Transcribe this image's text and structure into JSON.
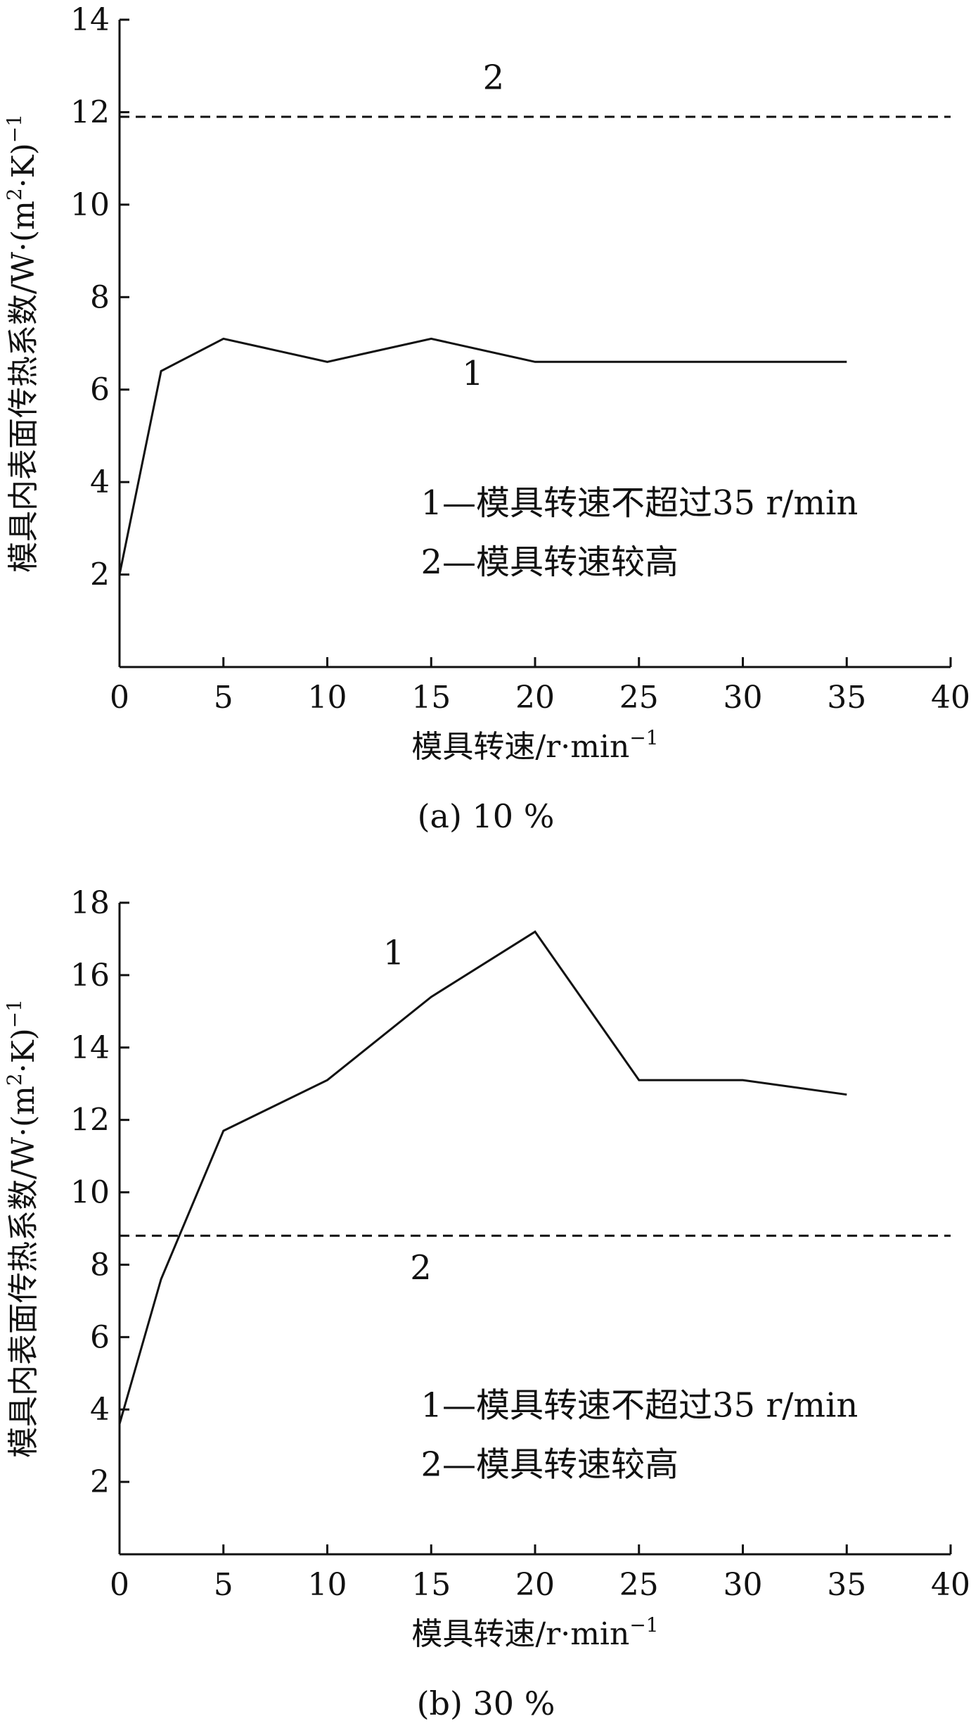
{
  "chart_data": [
    {
      "type": "line",
      "caption": "(a) 10 %",
      "xlabel": "模具转速/r·min",
      "xlabel_exp": "−1",
      "ylabel": "模具内表面传热系数/W·(m",
      "ylabel_sup2": "2",
      "ylabel_tail": "·K)",
      "ylabel_exp": "−1",
      "xlim": [
        0,
        40
      ],
      "ylim": [
        0,
        14
      ],
      "xticks": [
        0,
        5,
        10,
        15,
        20,
        25,
        30,
        35,
        40
      ],
      "yticks": [
        2,
        4,
        6,
        8,
        10,
        12,
        14
      ],
      "series": [
        {
          "name": "1",
          "style": "solid",
          "x": [
            0,
            2,
            5,
            10,
            15,
            20,
            25,
            30,
            35
          ],
          "y": [
            2.0,
            6.4,
            7.1,
            6.6,
            7.1,
            6.6,
            6.6,
            6.6,
            6.6
          ],
          "label_at": [
            17,
            6.1
          ]
        },
        {
          "name": "2",
          "style": "dashed",
          "x": [
            0,
            40
          ],
          "y": [
            11.9,
            11.9
          ],
          "label_at": [
            18,
            12.5
          ]
        }
      ],
      "legend": [
        "1—模具转速不超过35 r/min",
        "2—模具转速较高"
      ],
      "legend_at": [
        14.5,
        3.3
      ]
    },
    {
      "type": "line",
      "caption": "(b) 30 %",
      "xlabel": "模具转速/r·min",
      "xlabel_exp": "−1",
      "ylabel": "模具内表面传热系数/W·(m",
      "ylabel_sup2": "2",
      "ylabel_tail": "·K)",
      "ylabel_exp": "−1",
      "xlim": [
        0,
        40
      ],
      "ylim": [
        0,
        18
      ],
      "xticks": [
        0,
        5,
        10,
        15,
        20,
        25,
        30,
        35,
        40
      ],
      "yticks": [
        2,
        4,
        6,
        8,
        10,
        12,
        14,
        16,
        18
      ],
      "series": [
        {
          "name": "1",
          "style": "solid",
          "x": [
            0,
            2,
            5,
            10,
            15,
            20,
            25,
            30,
            35
          ],
          "y": [
            3.6,
            7.6,
            11.7,
            13.1,
            15.4,
            17.2,
            13.1,
            13.1,
            12.7
          ],
          "label_at": [
            13.2,
            16.3
          ]
        },
        {
          "name": "2",
          "style": "dashed",
          "x": [
            0,
            40
          ],
          "y": [
            8.8,
            8.8
          ],
          "label_at": [
            14.5,
            7.6
          ]
        }
      ],
      "legend": [
        "1—模具转速不超过35 r/min",
        "2—模具转速较高"
      ],
      "legend_at": [
        14.5,
        3.8
      ]
    }
  ]
}
